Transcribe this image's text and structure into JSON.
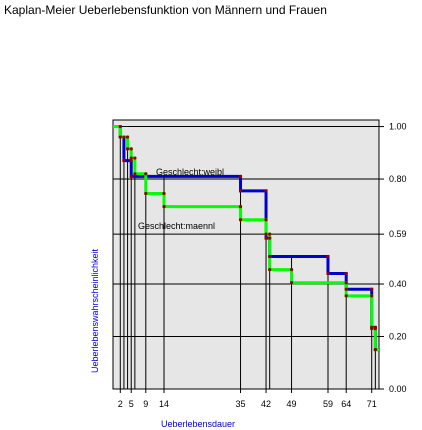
{
  "chart_data": {
    "type": "line",
    "step": "post",
    "title": "Kaplan-Meier Ueberlebensfunktion von Männern und Frauen",
    "xlabel": "Ueberlebensdauer",
    "ylabel": "Ueberlebenswahrscheinlichkeit",
    "axis_label_color": "#0000cc",
    "xlim": [
      0,
      73
    ],
    "ylim": [
      0,
      1.025
    ],
    "x_ticks": [
      2,
      5,
      9,
      14,
      35,
      42,
      49,
      59,
      64,
      71
    ],
    "x_tick_labels": [
      "2",
      "5",
      "9",
      "14",
      "35",
      "42",
      "49",
      "59",
      "64",
      "71"
    ],
    "y_ticks": [
      0.0,
      0.2,
      0.4,
      0.59,
      0.8,
      1.0
    ],
    "y_tick_labels": [
      "0.00",
      "0.20",
      "0.40",
      "0.59",
      "0.80",
      "1.00"
    ],
    "y_axis_side": "right",
    "grid": true,
    "background": "#e6e6e6",
    "event_marker_color": "#990000",
    "series": [
      {
        "name": "Geschlecht:weibl",
        "color": "#0000cc",
        "x": [
          0,
          2,
          3,
          5,
          35,
          42,
          43,
          59,
          64,
          71,
          72
        ],
        "y": [
          1.0,
          0.96,
          0.87,
          0.81,
          0.755,
          0.575,
          0.505,
          0.44,
          0.38,
          0.235,
          0.15
        ]
      },
      {
        "name": "Geschlecht:maennl",
        "color": "#00ff00",
        "x": [
          0,
          2,
          4,
          5,
          6,
          9,
          14,
          35,
          42,
          43,
          49,
          64,
          71,
          72
        ],
        "y": [
          1.0,
          0.96,
          0.915,
          0.88,
          0.82,
          0.745,
          0.695,
          0.645,
          0.59,
          0.455,
          0.405,
          0.355,
          0.23,
          0.15
        ]
      }
    ],
    "event_times": [
      2,
      3,
      4,
      5,
      6,
      9,
      14,
      35,
      42,
      43,
      49,
      59,
      64,
      71,
      72
    ],
    "annotations": [
      "Geschlecht:weibl",
      "Geschlecht:maennl"
    ]
  }
}
